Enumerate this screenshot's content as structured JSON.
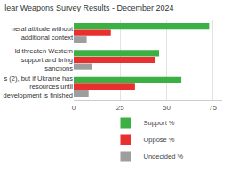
{
  "chart_data": {
    "type": "bar",
    "orientation": "horizontal",
    "title": "lear Weapons Survey Results - December 2024",
    "categories": [
      "neral attitude without additional context",
      "ld threaten Western support and bring sanctions",
      "s (2), but if Ukraine has resources until development is finished"
    ],
    "series": [
      {
        "name": "Support %",
        "color": "#3cb043",
        "values": [
          73,
          46,
          58
        ]
      },
      {
        "name": "Oppose %",
        "color": "#e8302f",
        "values": [
          20,
          44,
          33
        ]
      },
      {
        "name": "Undecided %",
        "color": "#9e9e9e",
        "values": [
          7,
          10,
          8
        ]
      }
    ],
    "xlim": [
      0,
      80
    ],
    "xticks": [
      0,
      25,
      50,
      75
    ],
    "grid": true,
    "legend": "bottom"
  }
}
